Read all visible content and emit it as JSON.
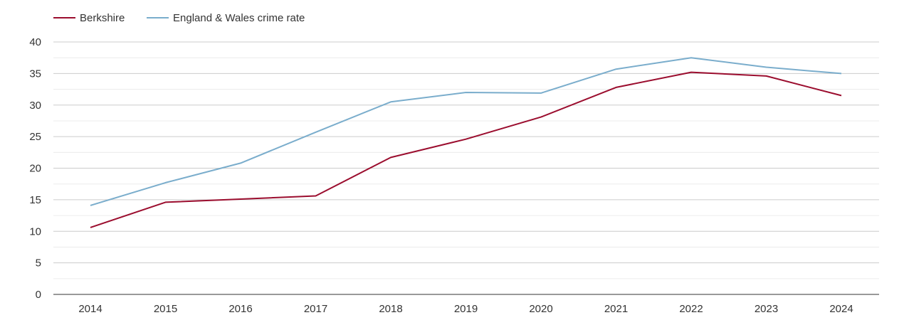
{
  "chart_data": {
    "type": "line",
    "title": "",
    "xlabel": "",
    "ylabel": "",
    "x": [
      "2014",
      "2015",
      "2016",
      "2017",
      "2018",
      "2019",
      "2020",
      "2021",
      "2022",
      "2023",
      "2024"
    ],
    "ylim": [
      0,
      40
    ],
    "yticks": [
      "0",
      "5",
      "10",
      "15",
      "20",
      "25",
      "30",
      "35",
      "40"
    ],
    "grid": true,
    "legend_position": "top-left",
    "series": [
      {
        "name": "Berkshire",
        "color": "#9b0d2e",
        "values": [
          10.6,
          14.6,
          15.1,
          15.6,
          21.7,
          24.6,
          28.1,
          32.8,
          35.2,
          34.6,
          31.5
        ]
      },
      {
        "name": "England & Wales crime rate",
        "color": "#7aadcc",
        "values": [
          14.1,
          17.7,
          20.8,
          25.7,
          30.5,
          32.0,
          31.9,
          35.7,
          37.5,
          36.0,
          35.0
        ]
      }
    ]
  }
}
